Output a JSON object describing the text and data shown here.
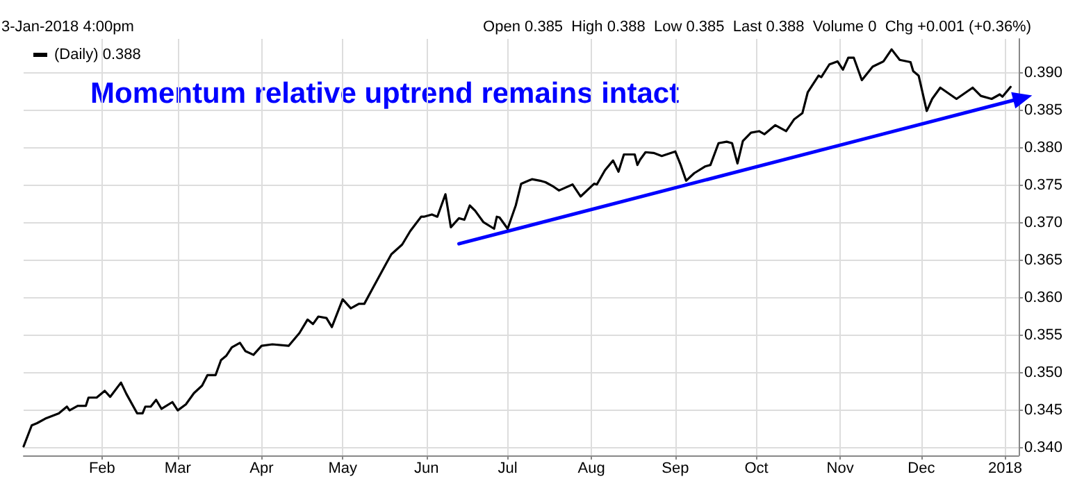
{
  "chart_data": {
    "type": "line",
    "subtitle": "3-Jan-2018 4:00pm",
    "annotations": [
      "Open 0.385  High 0.388  Low 0.385  Last 0.388  Volume 0  Chg +0.001 (+0.36%)",
      "Momentum relative uptrend remains intact"
    ],
    "xlim": [
      "2017-01-03",
      "2018-01-06"
    ],
    "xticks": [
      {
        "value": "2017-02-01",
        "label": "Feb"
      },
      {
        "value": "2017-03-01",
        "label": "Mar"
      },
      {
        "value": "2017-04-01",
        "label": "Apr"
      },
      {
        "value": "2017-05-01",
        "label": "May"
      },
      {
        "value": "2017-06-01",
        "label": "Jun"
      },
      {
        "value": "2017-07-01",
        "label": "Jul"
      },
      {
        "value": "2017-08-01",
        "label": "Aug"
      },
      {
        "value": "2017-09-01",
        "label": "Sep"
      },
      {
        "value": "2017-10-01",
        "label": "Oct"
      },
      {
        "value": "2017-11-01",
        "label": "Nov"
      },
      {
        "value": "2017-12-01",
        "label": "Dec"
      },
      {
        "value": "2018-01-01",
        "label": "2018"
      }
    ],
    "ylim": [
      0.339,
      0.3945
    ],
    "yticks": [
      {
        "value": 0.34,
        "label": "0.340"
      },
      {
        "value": 0.345,
        "label": "0.345"
      },
      {
        "value": 0.35,
        "label": "0.350"
      },
      {
        "value": 0.355,
        "label": "0.355"
      },
      {
        "value": 0.36,
        "label": "0.360"
      },
      {
        "value": 0.365,
        "label": "0.365"
      },
      {
        "value": 0.37,
        "label": "0.370"
      },
      {
        "value": 0.375,
        "label": "0.375"
      },
      {
        "value": 0.38,
        "label": "0.380"
      },
      {
        "value": 0.385,
        "label": "0.385"
      },
      {
        "value": 0.39,
        "label": "0.390"
      }
    ],
    "grid": true,
    "legend": "top left",
    "line_style": "solid",
    "series": [
      {
        "name": "(Daily) 0.388",
        "color": "#000000",
        "x": [
          "2017-01-03",
          "2017-01-06",
          "2017-01-08",
          "2017-01-11",
          "2017-01-16",
          "2017-01-19",
          "2017-01-20",
          "2017-01-23",
          "2017-01-26",
          "2017-01-27",
          "2017-01-30",
          "2017-02-02",
          "2017-02-04",
          "2017-02-08",
          "2017-02-10",
          "2017-02-14",
          "2017-02-16",
          "2017-02-17",
          "2017-02-19",
          "2017-02-21",
          "2017-02-23",
          "2017-02-27",
          "2017-03-01",
          "2017-03-04",
          "2017-03-07",
          "2017-03-10",
          "2017-03-12",
          "2017-03-15",
          "2017-03-17",
          "2017-03-19",
          "2017-03-21",
          "2017-03-24",
          "2017-03-26",
          "2017-03-29",
          "2017-04-01",
          "2017-04-05",
          "2017-04-11",
          "2017-04-15",
          "2017-04-18",
          "2017-04-20",
          "2017-04-22",
          "2017-04-25",
          "2017-04-27",
          "2017-05-01",
          "2017-05-04",
          "2017-05-07",
          "2017-05-09",
          "2017-05-12",
          "2017-05-17",
          "2017-05-19",
          "2017-05-23",
          "2017-05-26",
          "2017-05-30",
          "2017-05-31",
          "2017-06-03",
          "2017-06-05",
          "2017-06-08",
          "2017-06-10",
          "2017-06-13",
          "2017-06-15",
          "2017-06-17",
          "2017-06-19",
          "2017-06-22",
          "2017-06-26",
          "2017-06-27",
          "2017-06-28",
          "2017-07-01",
          "2017-07-04",
          "2017-07-06",
          "2017-07-10",
          "2017-07-13",
          "2017-07-15",
          "2017-07-18",
          "2017-07-20",
          "2017-07-25",
          "2017-07-28",
          "2017-08-02",
          "2017-08-03",
          "2017-08-06",
          "2017-08-09",
          "2017-08-11",
          "2017-08-13",
          "2017-08-17",
          "2017-08-18",
          "2017-08-19",
          "2017-08-21",
          "2017-08-24",
          "2017-08-27",
          "2017-09-01",
          "2017-09-03",
          "2017-09-05",
          "2017-09-08",
          "2017-09-12",
          "2017-09-14",
          "2017-09-17",
          "2017-09-20",
          "2017-09-22",
          "2017-09-24",
          "2017-09-26",
          "2017-09-29",
          "2017-10-02",
          "2017-10-04",
          "2017-10-08",
          "2017-10-12",
          "2017-10-15",
          "2017-10-18",
          "2017-10-20",
          "2017-10-24",
          "2017-10-25",
          "2017-10-28",
          "2017-10-31",
          "2017-11-02",
          "2017-11-04",
          "2017-11-06",
          "2017-11-09",
          "2017-11-13",
          "2017-11-17",
          "2017-11-20",
          "2017-11-23",
          "2017-11-27",
          "2017-11-28",
          "2017-11-30",
          "2017-12-03",
          "2017-12-05",
          "2017-12-08",
          "2017-12-14",
          "2017-12-20",
          "2017-12-23",
          "2017-12-27",
          "2017-12-30",
          "2017-12-31",
          "2018-01-03"
        ],
        "values": [
          0.3402,
          0.343,
          0.3433,
          0.3439,
          0.3446,
          0.3455,
          0.345,
          0.3456,
          0.3456,
          0.3467,
          0.3467,
          0.3476,
          0.3468,
          0.3487,
          0.3472,
          0.3446,
          0.3446,
          0.3455,
          0.3455,
          0.3464,
          0.3452,
          0.3461,
          0.345,
          0.3458,
          0.3473,
          0.3483,
          0.3497,
          0.3497,
          0.3517,
          0.3523,
          0.3534,
          0.354,
          0.3529,
          0.3524,
          0.3536,
          0.3538,
          0.3536,
          0.3553,
          0.3571,
          0.3565,
          0.3575,
          0.3573,
          0.3561,
          0.3598,
          0.3586,
          0.3592,
          0.3592,
          0.3612,
          0.3645,
          0.3658,
          0.3671,
          0.3689,
          0.3708,
          0.3708,
          0.3711,
          0.3708,
          0.3738,
          0.3694,
          0.3706,
          0.3704,
          0.3723,
          0.3716,
          0.3701,
          0.3692,
          0.3708,
          0.3707,
          0.3692,
          0.3723,
          0.3752,
          0.3758,
          0.3756,
          0.3754,
          0.3748,
          0.3743,
          0.3751,
          0.3735,
          0.3752,
          0.3751,
          0.377,
          0.3783,
          0.3768,
          0.3791,
          0.3791,
          0.3777,
          0.3784,
          0.3794,
          0.3793,
          0.3789,
          0.3795,
          0.3777,
          0.3756,
          0.3766,
          0.3775,
          0.3777,
          0.3806,
          0.3808,
          0.3806,
          0.3779,
          0.3809,
          0.382,
          0.3822,
          0.3818,
          0.383,
          0.3822,
          0.3838,
          0.3846,
          0.3874,
          0.3896,
          0.3894,
          0.3911,
          0.3915,
          0.3904,
          0.392,
          0.392,
          0.389,
          0.3908,
          0.3915,
          0.3931,
          0.3917,
          0.3914,
          0.3902,
          0.3896,
          0.3849,
          0.3865,
          0.388,
          0.3865,
          0.388,
          0.3869,
          0.3865,
          0.3871,
          0.3868,
          0.3881
        ]
      },
      {
        "type": "line",
        "color": "#0000ff",
        "x": [
          "2017-06-13",
          "2018-01-06"
        ],
        "values": [
          0.3672,
          0.3865
        ]
      }
    ]
  }
}
